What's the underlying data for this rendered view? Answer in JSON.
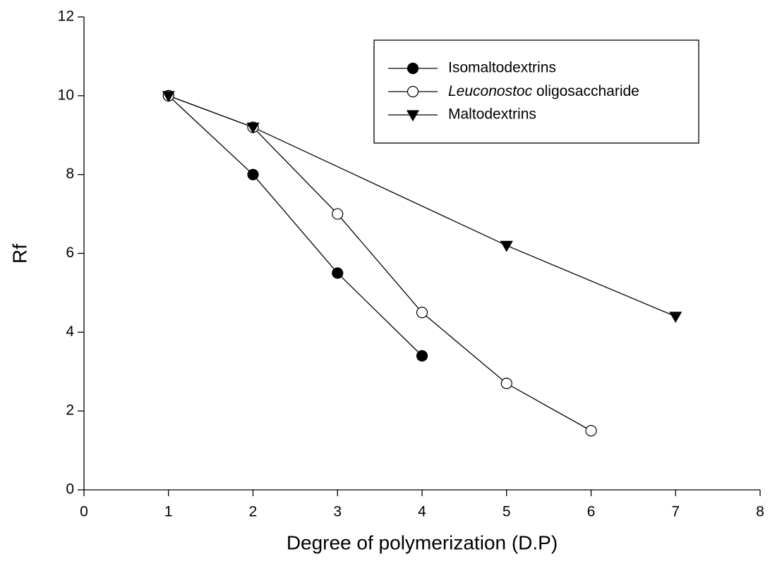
{
  "chart_data": {
    "type": "line",
    "xlabel": "Degree of polymerization (D.P)",
    "ylabel": "Rf",
    "xlim": [
      0,
      8
    ],
    "xticks": [
      0,
      1,
      2,
      3,
      4,
      5,
      6,
      7,
      8
    ],
    "ylim": [
      0,
      12
    ],
    "yticks": [
      0,
      2,
      4,
      6,
      8,
      10,
      12
    ],
    "grid": false,
    "legend": "upper right",
    "series": [
      {
        "name": "Isomaltodextrins",
        "color": "#000000",
        "marker": "circle",
        "marker_fill": "#000000",
        "x": [
          1,
          2,
          3,
          4
        ],
        "values": [
          10,
          8,
          5.5,
          3.4
        ]
      },
      {
        "name": "Leuconostoc oligosaccharide",
        "color": "#000000",
        "marker": "circle",
        "marker_fill": "#ffffff",
        "italic_first_word": true,
        "x": [
          1,
          2,
          3,
          4,
          5,
          6
        ],
        "values": [
          10,
          9.2,
          7,
          4.5,
          2.7,
          1.5
        ]
      },
      {
        "name": "Maltodextrins",
        "color": "#000000",
        "marker": "triangle-down",
        "marker_fill": "#000000",
        "x": [
          1,
          2,
          5,
          7
        ],
        "values": [
          10,
          9.2,
          6.2,
          4.4
        ]
      }
    ]
  }
}
